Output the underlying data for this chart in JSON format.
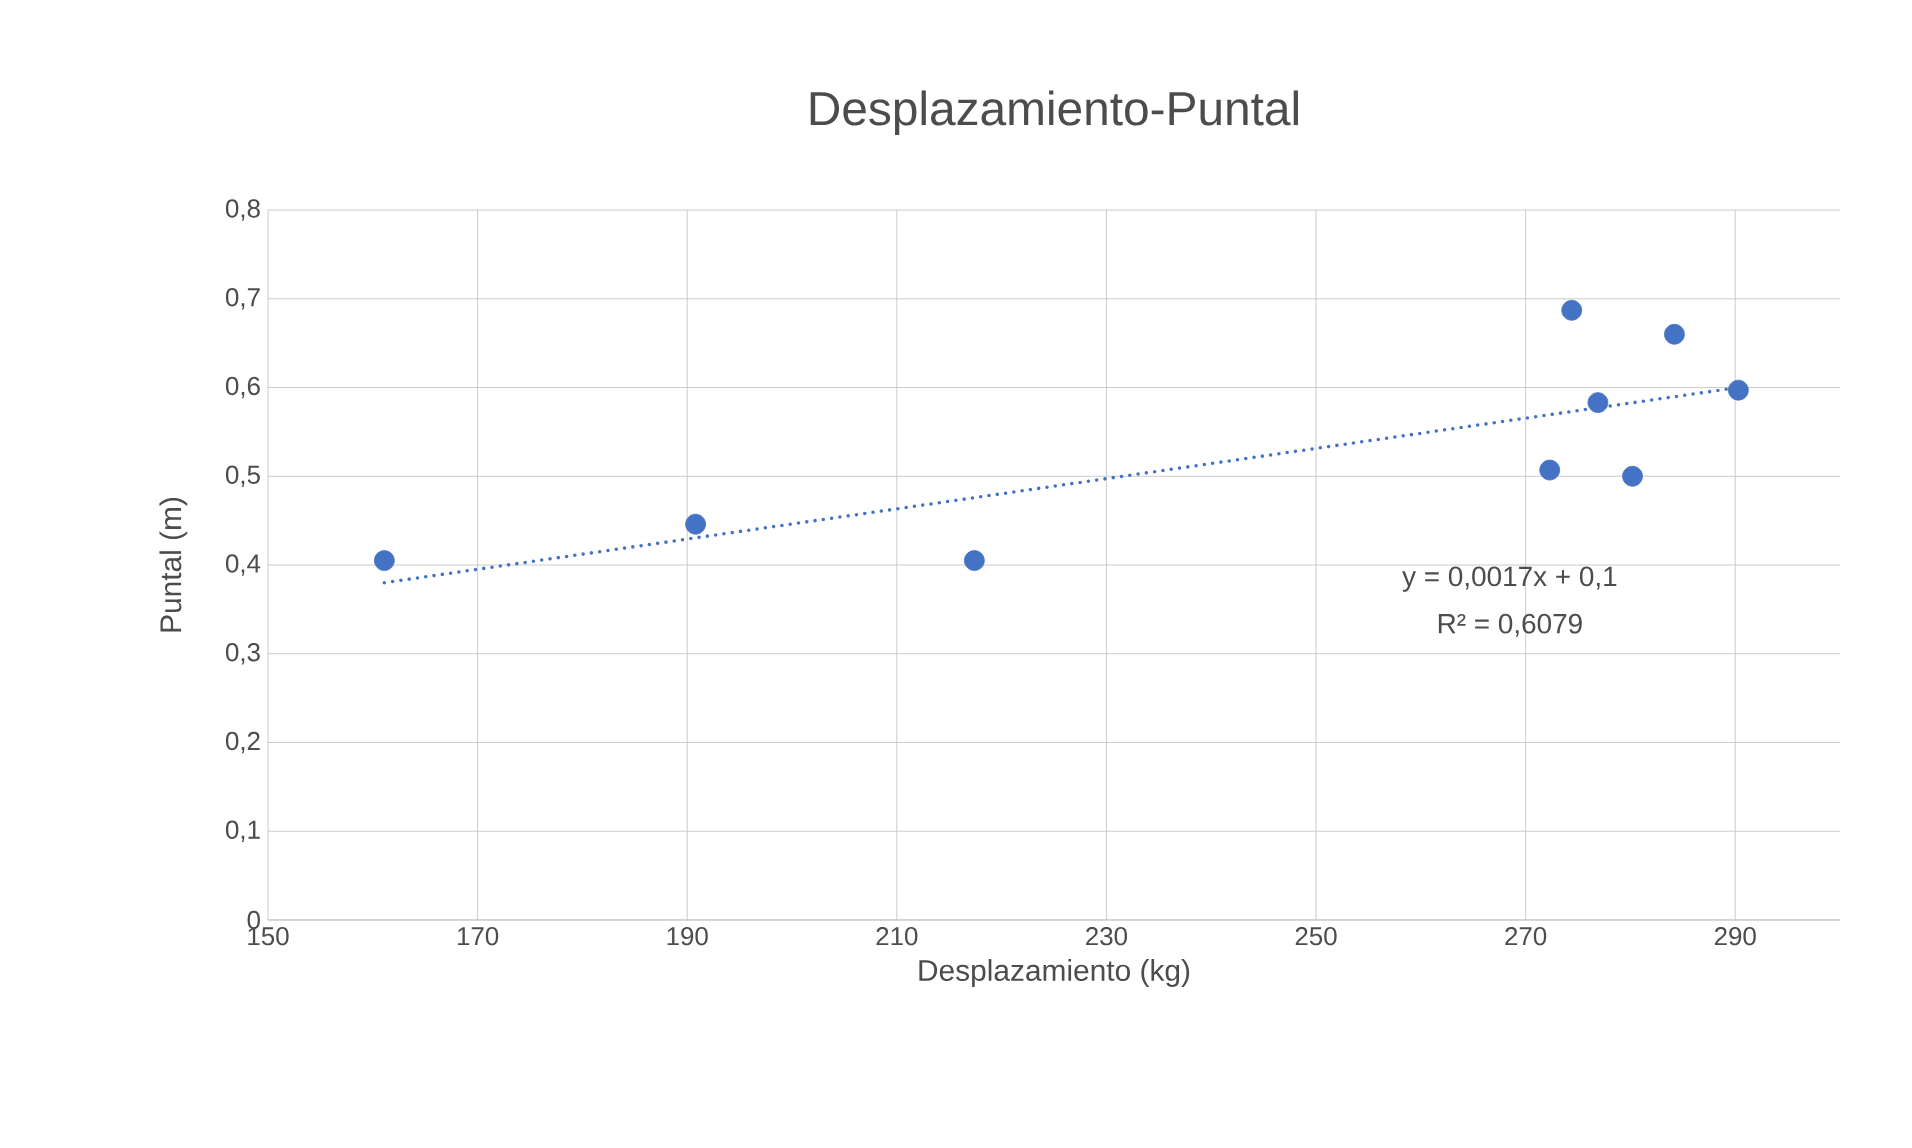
{
  "chart_data": {
    "type": "scatter",
    "title": "Desplazamiento-Puntal",
    "xlabel": "Desplazamiento (kg)",
    "ylabel": "Puntal (m)",
    "series": [
      {
        "color": "#4472c4",
        "marker": "circle",
        "x": [
          161.1,
          190.8,
          217.4,
          274.4,
          284.2,
          276.9,
          272.3,
          280.2,
          290.3
        ],
        "values": [
          0.405,
          0.446,
          0.405,
          0.687,
          0.66,
          0.583,
          0.507,
          0.5,
          0.597
        ]
      },
      {
        "type": "line",
        "color": "#4472c4",
        "line_style": "dotted",
        "marker": "none",
        "x": [
          161.1,
          290.3
        ],
        "values": [
          0.38,
          0.6
        ]
      }
    ],
    "annotations": [
      "y = 0,0017x + 0,1",
      "R² = 0,6079"
    ],
    "xlim": [
      150,
      300
    ],
    "xticks": [
      150,
      170,
      190,
      210,
      230,
      250,
      270,
      290
    ],
    "ylim": [
      0,
      0.8
    ],
    "yticks": [
      0,
      {
        "value": 0.1,
        "label": "0,1"
      },
      {
        "value": 0.2,
        "label": "0,2"
      },
      {
        "value": 0.3,
        "label": "0,3"
      },
      {
        "value": 0.4,
        "label": "0,4"
      },
      {
        "value": 0.5,
        "label": "0,5"
      },
      {
        "value": 0.6,
        "label": "0,6"
      },
      {
        "value": 0.7,
        "label": "0,7"
      },
      {
        "value": 0.8,
        "label": "0,8"
      }
    ],
    "grid": true
  }
}
